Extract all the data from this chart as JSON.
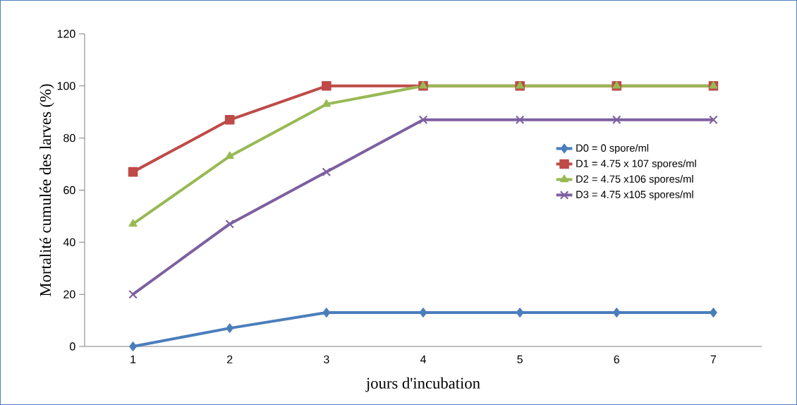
{
  "chart_data": {
    "type": "line",
    "xlabel": "jours d'incubation",
    "ylabel": "Mortalité cumulée  des larves (%)",
    "categories": [
      "1",
      "2",
      "3",
      "4",
      "5",
      "6",
      "7"
    ],
    "ylim": [
      0,
      120
    ],
    "yticks": [
      0,
      20,
      40,
      60,
      80,
      100,
      120
    ],
    "grid": false,
    "legend": "right",
    "line_style": "solid",
    "series": [
      {
        "name": "D0 = 0 spore/ml",
        "color": "#4a7ebb",
        "marker": "diamond",
        "values": [
          0,
          7,
          13,
          13,
          13,
          13,
          13
        ]
      },
      {
        "name": "D1 =  4.75 x 107  spores/ml",
        "color": "#be4b48",
        "marker": "square",
        "values": [
          67,
          87,
          100,
          100,
          100,
          100,
          100
        ]
      },
      {
        "name": "D2 = 4.75 x106  spores/ml",
        "color": "#98b954",
        "marker": "triangle",
        "values": [
          47,
          73,
          93,
          100,
          100,
          100,
          100
        ]
      },
      {
        "name": "D3 = 4.75 x105  spores/ml",
        "color": "#7d60a0",
        "marker": "cross",
        "values": [
          20,
          47,
          67,
          87,
          87,
          87,
          87
        ]
      }
    ]
  }
}
